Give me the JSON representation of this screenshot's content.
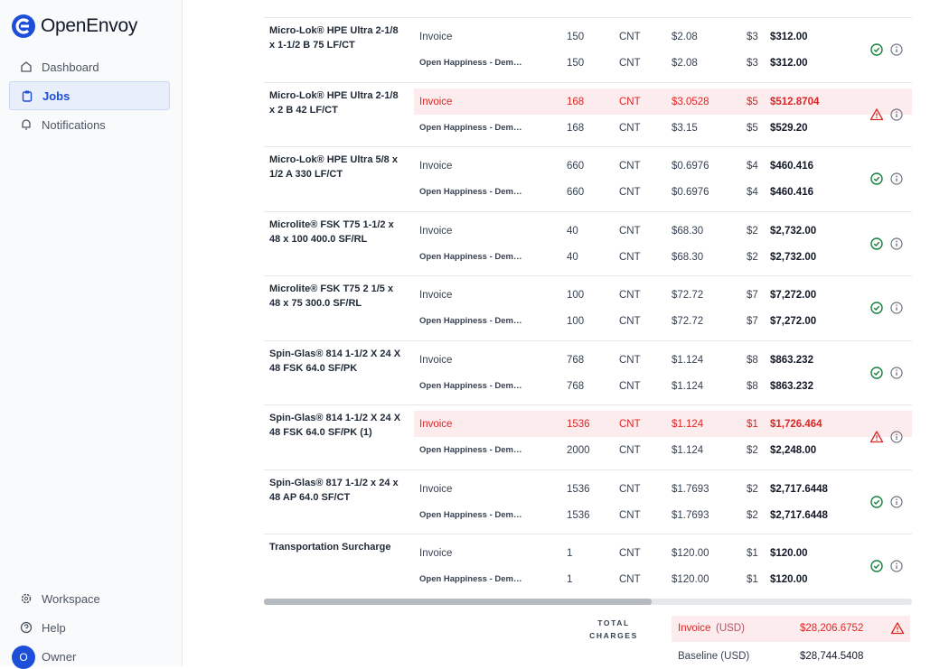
{
  "sidebar": {
    "brand": "OpenEnvoy",
    "nav": [
      {
        "label": "Dashboard",
        "active": false
      },
      {
        "label": "Jobs",
        "active": true
      },
      {
        "label": "Notifications",
        "active": false
      }
    ],
    "footer": [
      {
        "label": "Workspace"
      },
      {
        "label": "Help"
      }
    ],
    "user": {
      "initial": "O",
      "name": "Owner"
    }
  },
  "line_items": [
    {
      "name": "Micro-Lok® HPE Ultra 2-1/8 x 1-1/2 B 75 LF/CT",
      "status": "ok",
      "lines": [
        {
          "source": "Invoice",
          "quantity": "150",
          "uom": "CNT",
          "unit_price": "$2.08",
          "tax": "$3",
          "total": "$312.00",
          "flagged": false
        },
        {
          "source": "Open Happiness - Dem…",
          "quantity": "150",
          "uom": "CNT",
          "unit_price": "$2.08",
          "tax": "$3",
          "total": "$312.00",
          "flagged": false
        }
      ]
    },
    {
      "name": "Micro-Lok® HPE Ultra 2-1/8 x 2 B 42 LF/CT",
      "status": "warning",
      "lines": [
        {
          "source": "Invoice",
          "quantity": "168",
          "uom": "CNT",
          "unit_price": "$3.0528",
          "tax": "$5",
          "total": "$512.8704",
          "flagged": true
        },
        {
          "source": "Open Happiness - Dem…",
          "quantity": "168",
          "uom": "CNT",
          "unit_price": "$3.15",
          "tax": "$5",
          "total": "$529.20",
          "flagged": false
        }
      ]
    },
    {
      "name": "Micro-Lok® HPE Ultra 5/8 x 1/2 A 330 LF/CT",
      "status": "ok",
      "lines": [
        {
          "source": "Invoice",
          "quantity": "660",
          "uom": "CNT",
          "unit_price": "$0.6976",
          "tax": "$4",
          "total": "$460.416",
          "flagged": false
        },
        {
          "source": "Open Happiness - Dem…",
          "quantity": "660",
          "uom": "CNT",
          "unit_price": "$0.6976",
          "tax": "$4",
          "total": "$460.416",
          "flagged": false
        }
      ]
    },
    {
      "name": "Microlite® FSK T75 1-1/2 x 48 x 100 400.0 SF/RL",
      "status": "ok",
      "lines": [
        {
          "source": "Invoice",
          "quantity": "40",
          "uom": "CNT",
          "unit_price": "$68.30",
          "tax": "$2",
          "total": "$2,732.00",
          "flagged": false
        },
        {
          "source": "Open Happiness - Dem…",
          "quantity": "40",
          "uom": "CNT",
          "unit_price": "$68.30",
          "tax": "$2",
          "total": "$2,732.00",
          "flagged": false
        }
      ]
    },
    {
      "name": "Microlite® FSK T75 2 1/5 x 48 x 75 300.0 SF/RL",
      "status": "ok",
      "lines": [
        {
          "source": "Invoice",
          "quantity": "100",
          "uom": "CNT",
          "unit_price": "$72.72",
          "tax": "$7",
          "total": "$7,272.00",
          "flagged": false
        },
        {
          "source": "Open Happiness - Dem…",
          "quantity": "100",
          "uom": "CNT",
          "unit_price": "$72.72",
          "tax": "$7",
          "total": "$7,272.00",
          "flagged": false
        }
      ]
    },
    {
      "name": "Spin-Glas® 814 1-1/2 X 24 X 48 FSK 64.0 SF/PK",
      "status": "ok",
      "lines": [
        {
          "source": "Invoice",
          "quantity": "768",
          "uom": "CNT",
          "unit_price": "$1.124",
          "tax": "$8",
          "total": "$863.232",
          "flagged": false
        },
        {
          "source": "Open Happiness - Dem…",
          "quantity": "768",
          "uom": "CNT",
          "unit_price": "$1.124",
          "tax": "$8",
          "total": "$863.232",
          "flagged": false
        }
      ]
    },
    {
      "name": "Spin-Glas® 814 1-1/2 X 24 X 48 FSK 64.0 SF/PK (1)",
      "status": "warning",
      "lines": [
        {
          "source": "Invoice",
          "quantity": "1536",
          "uom": "CNT",
          "unit_price": "$1.124",
          "tax": "$1",
          "total": "$1,726.464",
          "flagged": true
        },
        {
          "source": "Open Happiness - Dem…",
          "quantity": "2000",
          "uom": "CNT",
          "unit_price": "$1.124",
          "tax": "$2",
          "total": "$2,248.00",
          "flagged": false
        }
      ]
    },
    {
      "name": "Spin-Glas® 817 1-1/2 x 24 x 48 AP 64.0 SF/CT",
      "status": "ok",
      "lines": [
        {
          "source": "Invoice",
          "quantity": "1536",
          "uom": "CNT",
          "unit_price": "$1.7693",
          "tax": "$2",
          "total": "$2,717.6448",
          "flagged": false
        },
        {
          "source": "Open Happiness - Dem…",
          "quantity": "1536",
          "uom": "CNT",
          "unit_price": "$1.7693",
          "tax": "$2",
          "total": "$2,717.6448",
          "flagged": false
        }
      ]
    },
    {
      "name": "Transportation Surcharge",
      "status": "ok",
      "lines": [
        {
          "source": "Invoice",
          "quantity": "1",
          "uom": "CNT",
          "unit_price": "$120.00",
          "tax": "$1",
          "total": "$120.00",
          "flagged": false
        },
        {
          "source": "Open Happiness - Dem…",
          "quantity": "1",
          "uom": "CNT",
          "unit_price": "$120.00",
          "tax": "$1",
          "total": "$120.00",
          "flagged": false
        }
      ]
    }
  ],
  "totals": {
    "label": "TOTAL CHARGES",
    "invoice": {
      "label": "Invoice",
      "currency": "(USD)",
      "amount": "$28,206.6752",
      "flagged": true
    },
    "baseline": {
      "label": "Baseline (USD)",
      "amount": "$28,744.5408"
    }
  }
}
